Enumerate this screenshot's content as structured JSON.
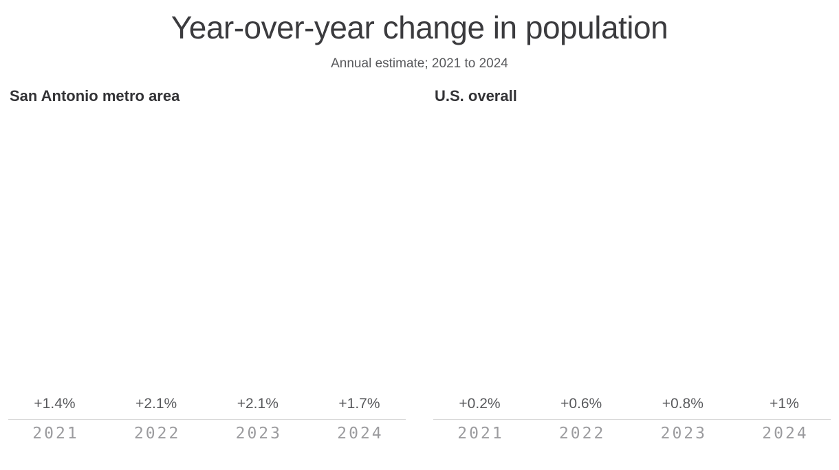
{
  "header": {
    "title": "Year-over-year change in population",
    "subtitle": "Annual estimate; 2021 to 2024"
  },
  "colors": {
    "bar": "#0cbecd",
    "title_text": "#3b3b3e",
    "subtitle_text": "#58595c",
    "value_label_text": "#58595c",
    "tick_text": "#9b9b9e",
    "axis_line": "#d9d9d9"
  },
  "chart_data": [
    {
      "type": "bar",
      "title": "San Antonio metro area",
      "categories": [
        "2021",
        "2022",
        "2023",
        "2024"
      ],
      "values": [
        1.4,
        2.1,
        2.1,
        1.7
      ],
      "value_labels": [
        "+1.4%",
        "+2.1%",
        "+2.1%",
        "+1.7%"
      ],
      "xlabel": "",
      "ylabel": "",
      "ylim": [
        0,
        2.33
      ],
      "grid": false,
      "legend": "none"
    },
    {
      "type": "bar",
      "title": "U.S. overall",
      "categories": [
        "2021",
        "2022",
        "2023",
        "2024"
      ],
      "values": [
        0.2,
        0.6,
        0.8,
        1.0
      ],
      "value_labels": [
        "+0.2%",
        "+0.6%",
        "+0.8%",
        "+1%"
      ],
      "xlabel": "",
      "ylabel": "",
      "ylim": [
        0,
        2.33
      ],
      "grid": false,
      "legend": "none"
    }
  ]
}
